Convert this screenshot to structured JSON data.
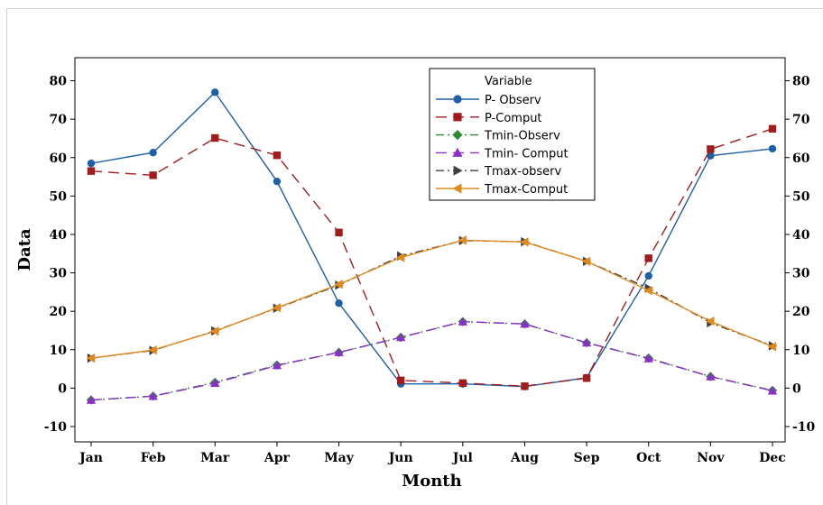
{
  "chart_data": {
    "type": "line",
    "title": "",
    "xlabel": "Month",
    "ylabel": "Data",
    "ylim": [
      -14,
      86
    ],
    "yticks": [
      -10,
      0,
      10,
      20,
      30,
      40,
      50,
      60,
      70,
      80
    ],
    "yticks_right": [
      -10,
      0,
      10,
      20,
      30,
      40,
      50,
      60,
      70,
      80
    ],
    "categories": [
      "Jan",
      "Feb",
      "Mar",
      "Apr",
      "May",
      "Jun",
      "Jul",
      "Aug",
      "Sep",
      "Oct",
      "Nov",
      "Dec"
    ],
    "grid": false,
    "legend": {
      "title": "Variable",
      "placement": "top-center"
    },
    "series": [
      {
        "name": "P- Observ",
        "color": "#1f5fa8",
        "dash": "solid",
        "marker": "circle",
        "values": [
          58.5,
          61.3,
          77.0,
          53.8,
          22.1,
          1.1,
          1.1,
          0.4,
          2.7,
          29.2,
          60.5,
          62.3
        ]
      },
      {
        "name": "P-Comput",
        "color": "#a11d1d",
        "dash": "long-dash",
        "marker": "square",
        "values": [
          56.5,
          55.4,
          65.1,
          60.6,
          40.5,
          2.0,
          1.3,
          0.5,
          2.6,
          33.8,
          62.2,
          67.5
        ]
      },
      {
        "name": "Tmin-Observ",
        "color": "#2e8b2e",
        "dash": "dash-dot",
        "marker": "diamond",
        "values": [
          -3.1,
          -2.1,
          1.5,
          6.0,
          9.3,
          13.2,
          17.3,
          16.7,
          11.8,
          7.8,
          3.0,
          -0.6
        ]
      },
      {
        "name": "Tmin- Comput",
        "color": "#8b2fc9",
        "dash": "long-dash",
        "marker": "triangle-up",
        "values": [
          -3.1,
          -2.1,
          1.3,
          5.9,
          9.3,
          13.2,
          17.3,
          16.7,
          11.8,
          7.7,
          3.0,
          -0.7
        ]
      },
      {
        "name": "Tmax-observ",
        "color": "#404040",
        "dash": "dash-dot",
        "marker": "triangle-right",
        "values": [
          7.8,
          9.8,
          14.9,
          20.8,
          26.8,
          34.4,
          38.4,
          38.1,
          33.0,
          26.0,
          17.0,
          11.0
        ]
      },
      {
        "name": "Tmax-Comput",
        "color": "#e08a1e",
        "dash": "solid",
        "marker": "triangle-left",
        "values": [
          7.8,
          9.9,
          14.8,
          20.9,
          27.0,
          34.0,
          38.5,
          38.0,
          33.0,
          25.4,
          17.4,
          10.8
        ]
      }
    ]
  }
}
